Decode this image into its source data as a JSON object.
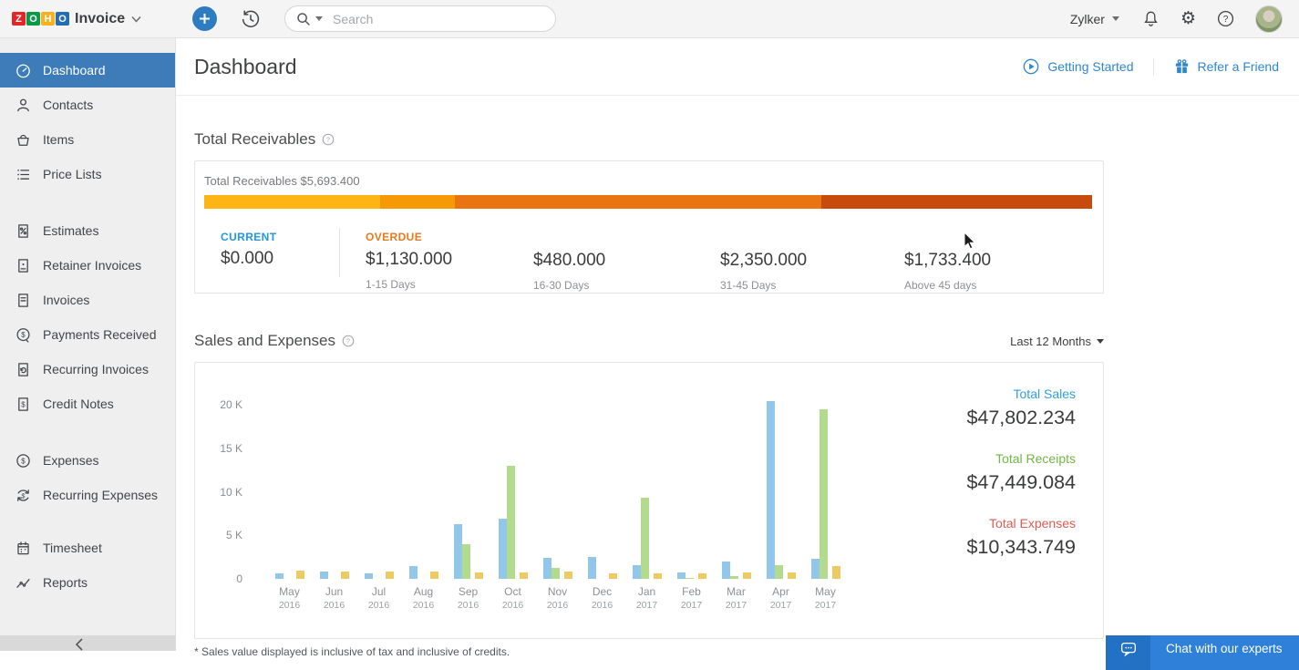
{
  "topbar": {
    "logo": {
      "letters": [
        {
          "ch": "Z",
          "bg": "#e42527"
        },
        {
          "ch": "O",
          "bg": "#089949"
        },
        {
          "ch": "H",
          "bg": "#f9b21d"
        },
        {
          "ch": "O",
          "bg": "#226db4"
        }
      ],
      "product_name": "Invoice",
      "caret_icon": "chevron-down-icon"
    },
    "plus_button": {
      "icon": "plus-icon"
    },
    "history_button": {
      "icon": "history-icon"
    },
    "search": {
      "icon": "search-icon",
      "caret_icon": "caret-down-icon",
      "placeholder": "Search",
      "value": ""
    },
    "org": {
      "name": "Zylker",
      "caret_icon": "caret-down-icon"
    },
    "actions": [
      {
        "icon": "bell-icon"
      },
      {
        "icon": "gear-icon"
      },
      {
        "icon": "help-icon"
      },
      {
        "icon": "avatar"
      }
    ]
  },
  "sidebar": {
    "groups": [
      {
        "items": [
          {
            "label": "Dashboard",
            "icon": "dashboard-icon",
            "active": true
          },
          {
            "label": "Contacts",
            "icon": "contacts-icon",
            "active": false
          },
          {
            "label": "Items",
            "icon": "items-icon",
            "active": false
          },
          {
            "label": "Price Lists",
            "icon": "price-lists-icon",
            "active": false
          }
        ]
      },
      {
        "items": [
          {
            "label": "Estimates",
            "icon": "estimates-icon",
            "active": false
          },
          {
            "label": "Retainer Invoices",
            "icon": "retainer-invoices-icon",
            "active": false
          },
          {
            "label": "Invoices",
            "icon": "invoices-icon",
            "active": false
          },
          {
            "label": "Payments Received",
            "icon": "payments-received-icon",
            "active": false
          },
          {
            "label": "Recurring Invoices",
            "icon": "recurring-invoices-icon",
            "active": false
          },
          {
            "label": "Credit Notes",
            "icon": "credit-notes-icon",
            "active": false
          }
        ]
      },
      {
        "items": [
          {
            "label": "Expenses",
            "icon": "expenses-icon",
            "active": false
          },
          {
            "label": "Recurring Expenses",
            "icon": "recurring-expenses-icon",
            "active": false
          }
        ]
      },
      {
        "items": [
          {
            "label": "Timesheet",
            "icon": "timesheet-icon",
            "active": false
          },
          {
            "label": "Reports",
            "icon": "reports-icon",
            "active": false
          }
        ]
      }
    ],
    "collapse_icon": "chevron-left-icon",
    "active_color": "#3d7cb8"
  },
  "header": {
    "title": "Dashboard",
    "links": [
      {
        "label": "Getting Started",
        "icon": "play-circle-icon"
      },
      {
        "label": "Refer a Friend",
        "icon": "gift-icon"
      }
    ],
    "link_color": "#2e86d2"
  },
  "receivables": {
    "heading": "Total Receivables",
    "help_icon": "help-circle-icon",
    "total_text": "Total Receivables $5,693.400",
    "bar_segments": [
      {
        "bucket": "1-15 Days",
        "amount": 1130.0,
        "pct": 19.85,
        "color": "#fcb515"
      },
      {
        "bucket": "16-30 Days",
        "amount": 480.0,
        "pct": 8.43,
        "color": "#f59a06"
      },
      {
        "bucket": "31-45 Days",
        "amount": 2350.0,
        "pct": 41.28,
        "color": "#e87511"
      },
      {
        "bucket": "Above 45 days",
        "amount": 1733.4,
        "pct": 30.44,
        "color": "#c74b0d"
      }
    ],
    "columns": [
      {
        "label": "CURRENT",
        "label_color": "#2097e4",
        "amount": "$0.000",
        "sublabel": ""
      },
      {
        "label": "OVERDUE",
        "label_color": "#e8791c",
        "amount": "$1,130.000",
        "sublabel": "1-15 Days"
      },
      {
        "label": "",
        "label_color": "",
        "amount": "$480.000",
        "sublabel": "16-30 Days"
      },
      {
        "label": "",
        "label_color": "",
        "amount": "$2,350.000",
        "sublabel": "31-45 Days"
      },
      {
        "label": "",
        "label_color": "",
        "amount": "$1,733.400",
        "sublabel": "Above 45 days"
      }
    ]
  },
  "sales_section": {
    "heading": "Sales and Expenses",
    "help_icon": "help-circle-icon",
    "period_selector": "Last 12 Months",
    "summary": [
      {
        "label": "Total Sales",
        "value": "$47,802.234",
        "color": "#2e9fe0"
      },
      {
        "label": "Total Receipts",
        "value": "$47,449.084",
        "color": "#71b844"
      },
      {
        "label": "Total Expenses",
        "value": "$10,343.749",
        "color": "#e05b52"
      }
    ]
  },
  "chart_data": {
    "type": "bar",
    "title": "Sales and Expenses",
    "period": "Last 12 Months",
    "categories": [
      {
        "month": "May",
        "year": "2016"
      },
      {
        "month": "Jun",
        "year": "2016"
      },
      {
        "month": "Jul",
        "year": "2016"
      },
      {
        "month": "Aug",
        "year": "2016"
      },
      {
        "month": "Sep",
        "year": "2016"
      },
      {
        "month": "Oct",
        "year": "2016"
      },
      {
        "month": "Nov",
        "year": "2016"
      },
      {
        "month": "Dec",
        "year": "2016"
      },
      {
        "month": "Jan",
        "year": "2017"
      },
      {
        "month": "Feb",
        "year": "2017"
      },
      {
        "month": "Mar",
        "year": "2017"
      },
      {
        "month": "Apr",
        "year": "2017"
      },
      {
        "month": "May",
        "year": "2017"
      }
    ],
    "series": [
      {
        "name": "Sales",
        "color": "#92c7ea",
        "values": [
          600,
          800,
          600,
          1500,
          6300,
          6900,
          2400,
          2500,
          1600,
          700,
          2000,
          20400,
          2300
        ]
      },
      {
        "name": "Receipts",
        "color": "#b2db8d",
        "values": [
          0,
          0,
          0,
          0,
          4000,
          13000,
          1250,
          0,
          9300,
          100,
          300,
          1600,
          19500
        ]
      },
      {
        "name": "Expenses",
        "color": "#eecb62",
        "values": [
          900,
          800,
          800,
          800,
          750,
          750,
          800,
          600,
          600,
          650,
          700,
          700,
          1500
        ]
      }
    ],
    "y_ticks": [
      {
        "label": "20 K",
        "value": 20000
      },
      {
        "label": "15 K",
        "value": 15000
      },
      {
        "label": "10 K",
        "value": 10000
      },
      {
        "label": "5 K",
        "value": 5000
      },
      {
        "label": "0",
        "value": 0
      }
    ],
    "ylim": [
      0,
      20000
    ],
    "grid": false,
    "legend": "none"
  },
  "footnote": "* Sales value displayed is inclusive of tax and inclusive of credits.",
  "chat": {
    "label": "Chat with our experts",
    "icon": "chat-bubble-icon"
  }
}
